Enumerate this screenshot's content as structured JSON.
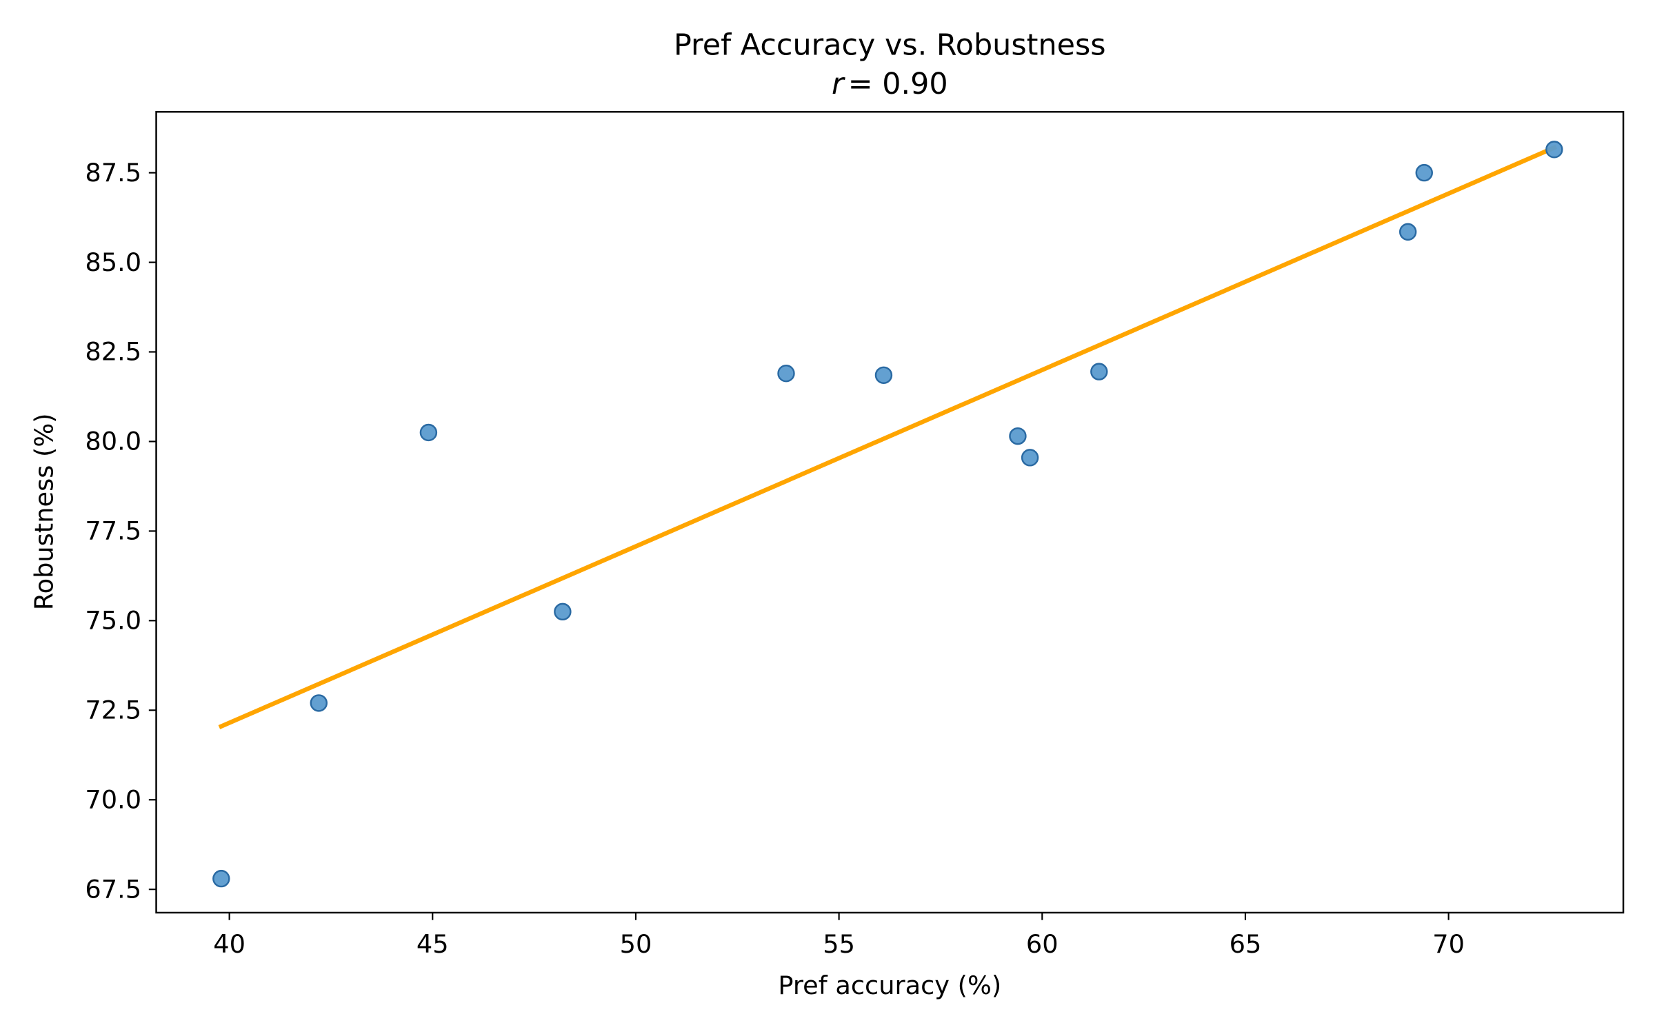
{
  "chart_data": {
    "type": "scatter",
    "title": "Pref Accuracy vs. Robustness",
    "subtitle_var": "r",
    "subtitle_value": "= 0.90",
    "xlabel": "Pref accuracy (%)",
    "ylabel": "Robustness (%)",
    "xlim": [
      38.2,
      74.3
    ],
    "ylim": [
      66.85,
      89.2
    ],
    "x_ticks": [
      40,
      45,
      50,
      55,
      60,
      65,
      70
    ],
    "y_ticks": [
      67.5,
      70.0,
      72.5,
      75.0,
      77.5,
      80.0,
      82.5,
      85.0,
      87.5
    ],
    "x_tick_labels": [
      "40",
      "45",
      "50",
      "55",
      "60",
      "65",
      "70"
    ],
    "y_tick_labels": [
      "67.5",
      "70.0",
      "72.5",
      "75.0",
      "77.5",
      "80.0",
      "82.5",
      "85.0",
      "87.5"
    ],
    "grid": false,
    "points": [
      {
        "x": 39.8,
        "y": 67.8
      },
      {
        "x": 42.2,
        "y": 72.7
      },
      {
        "x": 44.9,
        "y": 80.25
      },
      {
        "x": 48.2,
        "y": 75.25
      },
      {
        "x": 53.7,
        "y": 81.9
      },
      {
        "x": 56.1,
        "y": 81.85
      },
      {
        "x": 59.4,
        "y": 80.15
      },
      {
        "x": 59.7,
        "y": 79.55
      },
      {
        "x": 61.4,
        "y": 81.95
      },
      {
        "x": 69.0,
        "y": 85.85
      },
      {
        "x": 69.4,
        "y": 87.5
      },
      {
        "x": 72.6,
        "y": 88.15
      }
    ],
    "fit_line": {
      "x": [
        39.8,
        72.6
      ],
      "y": [
        72.05,
        88.2
      ]
    },
    "colors": {
      "points": "#5b9bcf",
      "points_edge": "#2a6aa3",
      "fit": "#ffa500"
    }
  }
}
